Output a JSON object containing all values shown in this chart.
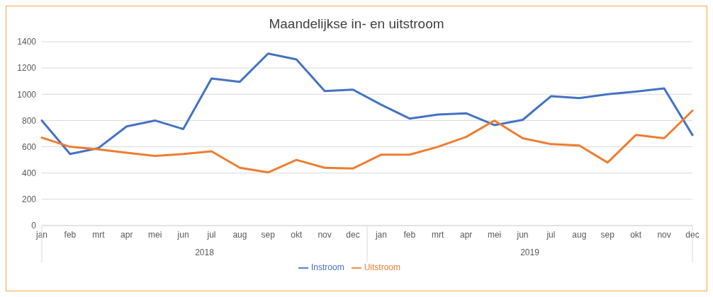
{
  "chart_data": {
    "type": "line",
    "title": "Maandelijkse in- en uitstroom",
    "categories": [
      "jan",
      "feb",
      "mrt",
      "apr",
      "mei",
      "jun",
      "jul",
      "aug",
      "sep",
      "okt",
      "nov",
      "dec",
      "jan",
      "feb",
      "mrt",
      "apr",
      "mei",
      "jun",
      "jul",
      "aug",
      "sep",
      "okt",
      "nov",
      "dec"
    ],
    "annotations": [
      "2018",
      "2019"
    ],
    "series": [
      {
        "name": "Instroom",
        "color": "#4472c4",
        "values": [
          800,
          545,
          590,
          755,
          800,
          735,
          1120,
          1095,
          1310,
          1265,
          1025,
          1035,
          920,
          815,
          845,
          855,
          765,
          805,
          985,
          970,
          1000,
          1020,
          1045,
          690
        ]
      },
      {
        "name": "Uitstroom",
        "color": "#ed7d31",
        "values": [
          670,
          600,
          580,
          555,
          530,
          545,
          565,
          440,
          405,
          500,
          440,
          435,
          540,
          540,
          600,
          675,
          800,
          665,
          620,
          610,
          480,
          690,
          665,
          875
        ]
      }
    ],
    "ylim": [
      0,
      1400
    ],
    "yticks": [
      0,
      200,
      400,
      600,
      800,
      1000,
      1200,
      1400
    ],
    "grid": "y",
    "legend": "bottom",
    "marker": "none",
    "line_style": "solid"
  }
}
